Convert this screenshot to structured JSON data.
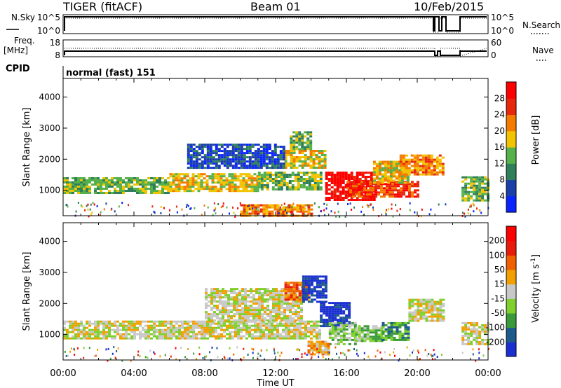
{
  "header": {
    "radar": "TIGER (fitACF)",
    "beam": "Beam 01",
    "date": "10/Feb/2015"
  },
  "strip_nsky": {
    "left_label": "N.Sky",
    "right_label": "N.Search",
    "left_ticks": [
      "10^5",
      "10^0"
    ],
    "right_ticks": [
      "10^5",
      "10^0"
    ]
  },
  "strip_freq": {
    "left_label_1": "Freq.",
    "left_label_2": "[MHz]",
    "right_label": "Nave",
    "left_ticks": [
      "18",
      "8"
    ],
    "right_ticks": [
      "60",
      "0"
    ]
  },
  "cpid": {
    "label": "CPID",
    "value": "normal (fast) 151"
  },
  "chart_data": [
    {
      "type": "heatmap",
      "name": "power",
      "ylabel": "Slant Range [km]",
      "ylim": [
        180,
        4600
      ],
      "yticks": [
        1000,
        2000,
        3000,
        4000
      ],
      "x_hours_range": [
        0,
        24
      ],
      "colorbar": {
        "label": "Power [dB]",
        "ticks": [
          "4",
          "8",
          "12",
          "16",
          "20",
          "24",
          "28"
        ],
        "colors": [
          "#0a24ff",
          "#1b3fa8",
          "#2f7f5a",
          "#56b14b",
          "#f2c300",
          "#f47a00",
          "#e8260c",
          "#ff0000"
        ]
      },
      "regions": [
        {
          "t0": 0.0,
          "t1": 6.0,
          "r0": 880,
          "r1": 1420,
          "level": 3
        },
        {
          "t0": 6.0,
          "t1": 11.0,
          "r0": 950,
          "r1": 1550,
          "level": 4
        },
        {
          "t0": 11.0,
          "t1": 14.5,
          "r0": 1000,
          "r1": 1600,
          "level": 3
        },
        {
          "t0": 12.5,
          "t1": 14.8,
          "r0": 1700,
          "r1": 2300,
          "level": 4
        },
        {
          "t0": 14.8,
          "t1": 17.5,
          "r0": 700,
          "r1": 1600,
          "level": 7
        },
        {
          "t0": 16.0,
          "t1": 20.0,
          "r0": 800,
          "r1": 1300,
          "level": 6
        },
        {
          "t0": 17.5,
          "t1": 19.5,
          "r0": 1250,
          "r1": 1950,
          "level": 4
        },
        {
          "t0": 19.0,
          "t1": 21.5,
          "r0": 1500,
          "r1": 2150,
          "level": 5
        },
        {
          "t0": 12.8,
          "t1": 14.0,
          "r0": 2300,
          "r1": 2900,
          "level": 3
        },
        {
          "t0": 7.0,
          "t1": 12.5,
          "r0": 1700,
          "r1": 2500,
          "level": 1
        },
        {
          "t0": 10.0,
          "t1": 14.0,
          "r0": 180,
          "r1": 550,
          "level": 5
        },
        {
          "t0": 22.5,
          "t1": 24.0,
          "r0": 700,
          "r1": 1450,
          "level": 3
        }
      ]
    },
    {
      "type": "heatmap",
      "name": "velocity",
      "ylabel": "Slant Range [km]",
      "xlabel": "Time UT",
      "xticks": [
        "00:00",
        "04:00",
        "08:00",
        "12:00",
        "16:00",
        "20:00",
        "00:00"
      ],
      "ylim": [
        180,
        4600
      ],
      "yticks": [
        1000,
        2000,
        3000,
        4000
      ],
      "x_hours_range": [
        0,
        24
      ],
      "colorbar": {
        "label": "Velocity [m s-1]",
        "ticks": [
          "200",
          "100",
          "50",
          "15",
          "-15",
          "-50",
          "-100",
          "-200"
        ],
        "colors": [
          "#1a2fd0",
          "#1c5a8c",
          "#3a9a3a",
          "#7fd02c",
          "#c8c8c8",
          "#f2a000",
          "#f06000",
          "#e81a0a",
          "#ff0000"
        ]
      },
      "regions": [
        {
          "t0": 0.0,
          "t1": 14.5,
          "r0": 900,
          "r1": 1450,
          "level": 4
        },
        {
          "t0": 8.0,
          "t1": 13.5,
          "r0": 1450,
          "r1": 2500,
          "level": 4
        },
        {
          "t0": 12.5,
          "t1": 13.8,
          "r0": 2100,
          "r1": 2700,
          "level": 6
        },
        {
          "t0": 13.5,
          "t1": 14.8,
          "r0": 2050,
          "r1": 2900,
          "level": 0
        },
        {
          "t0": 14.5,
          "t1": 16.2,
          "r0": 1300,
          "r1": 2050,
          "level": 0
        },
        {
          "t0": 15.0,
          "t1": 16.5,
          "r0": 700,
          "r1": 1400,
          "level": 3
        },
        {
          "t0": 16.5,
          "t1": 18.0,
          "r0": 800,
          "r1": 1300,
          "level": 3
        },
        {
          "t0": 18.0,
          "t1": 19.5,
          "r0": 800,
          "r1": 1400,
          "level": 2
        },
        {
          "t0": 13.8,
          "t1": 15.0,
          "r0": 350,
          "r1": 800,
          "level": 5
        },
        {
          "t0": 19.5,
          "t1": 21.5,
          "r0": 1450,
          "r1": 2150,
          "level": 4
        },
        {
          "t0": 22.5,
          "t1": 24.0,
          "r0": 700,
          "r1": 1400,
          "level": 4
        }
      ]
    }
  ]
}
